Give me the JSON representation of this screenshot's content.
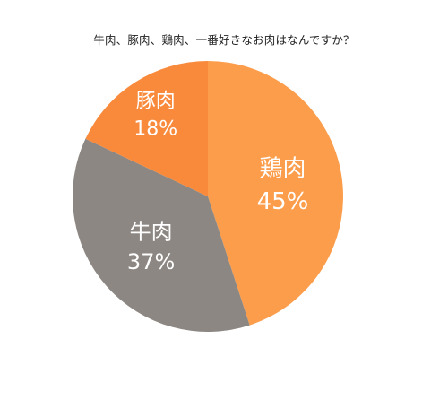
{
  "chart_data": {
    "type": "pie",
    "title": "牛肉、豚肉、鶏肉、一番好きなお肉はなんですか？",
    "slices": [
      {
        "label": "鶏肉",
        "value": 45,
        "value_label": "45%",
        "color": "#FC9D4C"
      },
      {
        "label": "牛肉",
        "value": 37,
        "value_label": "37%",
        "color": "#8C8782"
      },
      {
        "label": "豚肉",
        "value": 18,
        "value_label": "18%",
        "color": "#F98A3C"
      }
    ],
    "start_angle_deg": 0,
    "direction": "clockwise",
    "legend": "none"
  }
}
